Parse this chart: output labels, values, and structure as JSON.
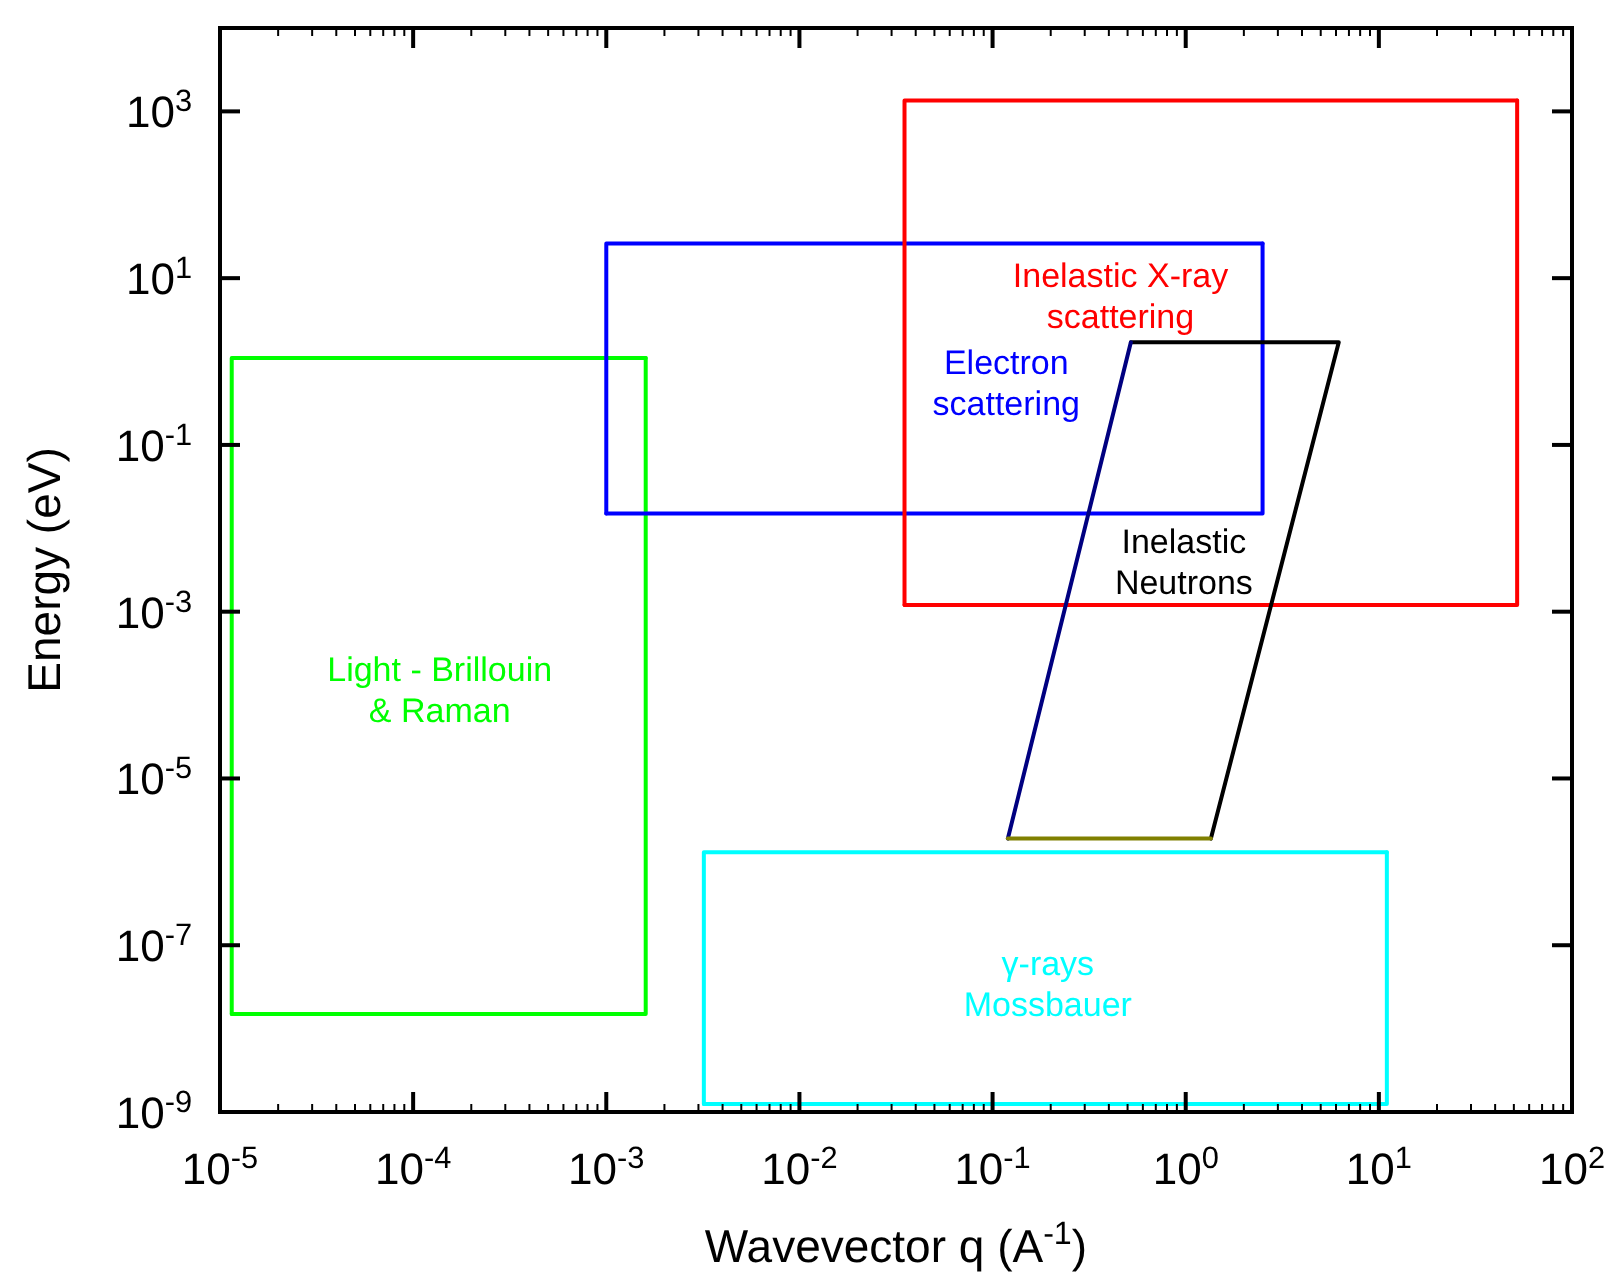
{
  "chart_data": {
    "type": "line",
    "xlabel": "Wavevector q (A$^{-1}$)",
    "ylabel": "Energy (eV)",
    "log": "xy",
    "grid": false,
    "legend": false,
    "marker": "none",
    "line_style": "solid",
    "xlim": [
      1e-05,
      100
    ],
    "ylim": [
      1e-09,
      10000
    ],
    "xticks": [
      {
        "value": 1e-05,
        "label": "10$^{-5}$"
      },
      {
        "value": 2e-05,
        "label": null
      },
      {
        "value": 3e-05,
        "label": null
      },
      {
        "value": 4e-05,
        "label": null
      },
      {
        "value": 5e-05,
        "label": null
      },
      {
        "value": 6e-05,
        "label": null
      },
      {
        "value": 7e-05,
        "label": null
      },
      {
        "value": 8e-05,
        "label": null
      },
      {
        "value": 9e-05,
        "label": null
      },
      {
        "value": 0.0001,
        "label": "10$^{-4}$"
      },
      {
        "value": 0.0002,
        "label": null
      },
      {
        "value": 0.0003,
        "label": null
      },
      {
        "value": 0.0004,
        "label": null
      },
      {
        "value": 0.0005,
        "label": null
      },
      {
        "value": 0.0006,
        "label": null
      },
      {
        "value": 0.0007,
        "label": null
      },
      {
        "value": 0.0008,
        "label": null
      },
      {
        "value": 0.0009,
        "label": null
      },
      {
        "value": 0.001,
        "label": "10$^{-3}$"
      },
      {
        "value": 0.002,
        "label": null
      },
      {
        "value": 0.003,
        "label": null
      },
      {
        "value": 0.004,
        "label": null
      },
      {
        "value": 0.005,
        "label": null
      },
      {
        "value": 0.006,
        "label": null
      },
      {
        "value": 0.007,
        "label": null
      },
      {
        "value": 0.008,
        "label": null
      },
      {
        "value": 0.009,
        "label": null
      },
      {
        "value": 0.01,
        "label": "10$^{-2}$"
      },
      {
        "value": 0.02,
        "label": null
      },
      {
        "value": 0.03,
        "label": null
      },
      {
        "value": 0.04,
        "label": null
      },
      {
        "value": 0.05,
        "label": null
      },
      {
        "value": 0.06,
        "label": null
      },
      {
        "value": 0.07,
        "label": null
      },
      {
        "value": 0.08,
        "label": null
      },
      {
        "value": 0.09,
        "label": null
      },
      {
        "value": 0.1,
        "label": "10$^{-1}$"
      },
      {
        "value": 0.2,
        "label": null
      },
      {
        "value": 0.3,
        "label": null
      },
      {
        "value": 0.4,
        "label": null
      },
      {
        "value": 0.5,
        "label": null
      },
      {
        "value": 0.6,
        "label": null
      },
      {
        "value": 0.7,
        "label": null
      },
      {
        "value": 0.8,
        "label": null
      },
      {
        "value": 0.9,
        "label": null
      },
      {
        "value": 1,
        "label": "10$^{0}$"
      },
      {
        "value": 2,
        "label": null
      },
      {
        "value": 3,
        "label": null
      },
      {
        "value": 4,
        "label": null
      },
      {
        "value": 5,
        "label": null
      },
      {
        "value": 6,
        "label": null
      },
      {
        "value": 7,
        "label": null
      },
      {
        "value": 8,
        "label": null
      },
      {
        "value": 9,
        "label": null
      },
      {
        "value": 10,
        "label": "10$^{1}$"
      },
      {
        "value": 20,
        "label": null
      },
      {
        "value": 30,
        "label": null
      },
      {
        "value": 40,
        "label": null
      },
      {
        "value": 50,
        "label": null
      },
      {
        "value": 60,
        "label": null
      },
      {
        "value": 70,
        "label": null
      },
      {
        "value": 80,
        "label": null
      },
      {
        "value": 90,
        "label": null
      },
      {
        "value": 100,
        "label": "10$^{2}$"
      }
    ],
    "yticks": [
      {
        "value": 1e-09,
        "label": "10$^{-9}$"
      },
      {
        "value": 1e-07,
        "label": "10$^{-7}$"
      },
      {
        "value": 1e-05,
        "label": "10$^{-5}$"
      },
      {
        "value": 0.001,
        "label": "10$^{-3}$"
      },
      {
        "value": 0.1,
        "label": "10$^{-1}$"
      },
      {
        "value": 10,
        "label": "10$^{1}$"
      },
      {
        "value": 1000,
        "label": "10$^{3}$"
      }
    ],
    "series": [
      {
        "name": "Light - Brillouin\n& Raman",
        "color": "#00ff00",
        "x": [
          1.15e-05,
          1.15e-05,
          0.0016
        ],
        "values": [
          1.5e-08,
          1.1,
          1.1
        ]
      },
      {
        "color": "#00ff00",
        "x": [
          0.0016,
          0.0016,
          1.15e-05
        ],
        "values": [
          1.1,
          1.5e-08,
          1.5e-08
        ]
      },
      {
        "name": "Electron\nscattering",
        "color": "#0000ff",
        "x": [
          0.001,
          0.001,
          2.5
        ],
        "values": [
          0.015,
          26,
          26
        ]
      },
      {
        "color": "#0000ff",
        "x": [
          2.5,
          2.5,
          0.001
        ],
        "values": [
          26,
          0.015,
          0.015
        ]
      },
      {
        "name": "Inelastic X-ray\nscattering",
        "color": "#ff0000",
        "x": [
          0.035,
          0.035,
          52
        ],
        "values": [
          0.0012,
          1350,
          1350
        ]
      },
      {
        "color": "#ff0000",
        "x": [
          52,
          52,
          0.035
        ],
        "values": [
          1350,
          0.0012,
          0.0012
        ]
      },
      {
        "name": "γ-rays\nMossbauer",
        "color": "#00ffff",
        "x": [
          0.0032,
          0.0032,
          11
        ],
        "values": [
          1.25e-09,
          1.3e-06,
          1.3e-06
        ]
      },
      {
        "color": "#00ffff",
        "x": [
          11,
          11,
          0.0032
        ],
        "values": [
          1.3e-06,
          1.25e-09,
          1.25e-09
        ]
      },
      {
        "name": "Inelastic\nNeutrons",
        "color": "#000000",
        "x": [
          0.52,
          6.2,
          1.35
        ],
        "values": [
          1.7,
          1.7,
          1.9e-06
        ]
      },
      {
        "color": "#000080",
        "x": [
          0.12,
          0.52
        ],
        "values": [
          1.9e-06,
          1.7
        ]
      },
      {
        "color": "#808000",
        "x": [
          0.12,
          1.35
        ],
        "values": [
          1.9e-06,
          1.9e-06
        ]
      }
    ]
  }
}
